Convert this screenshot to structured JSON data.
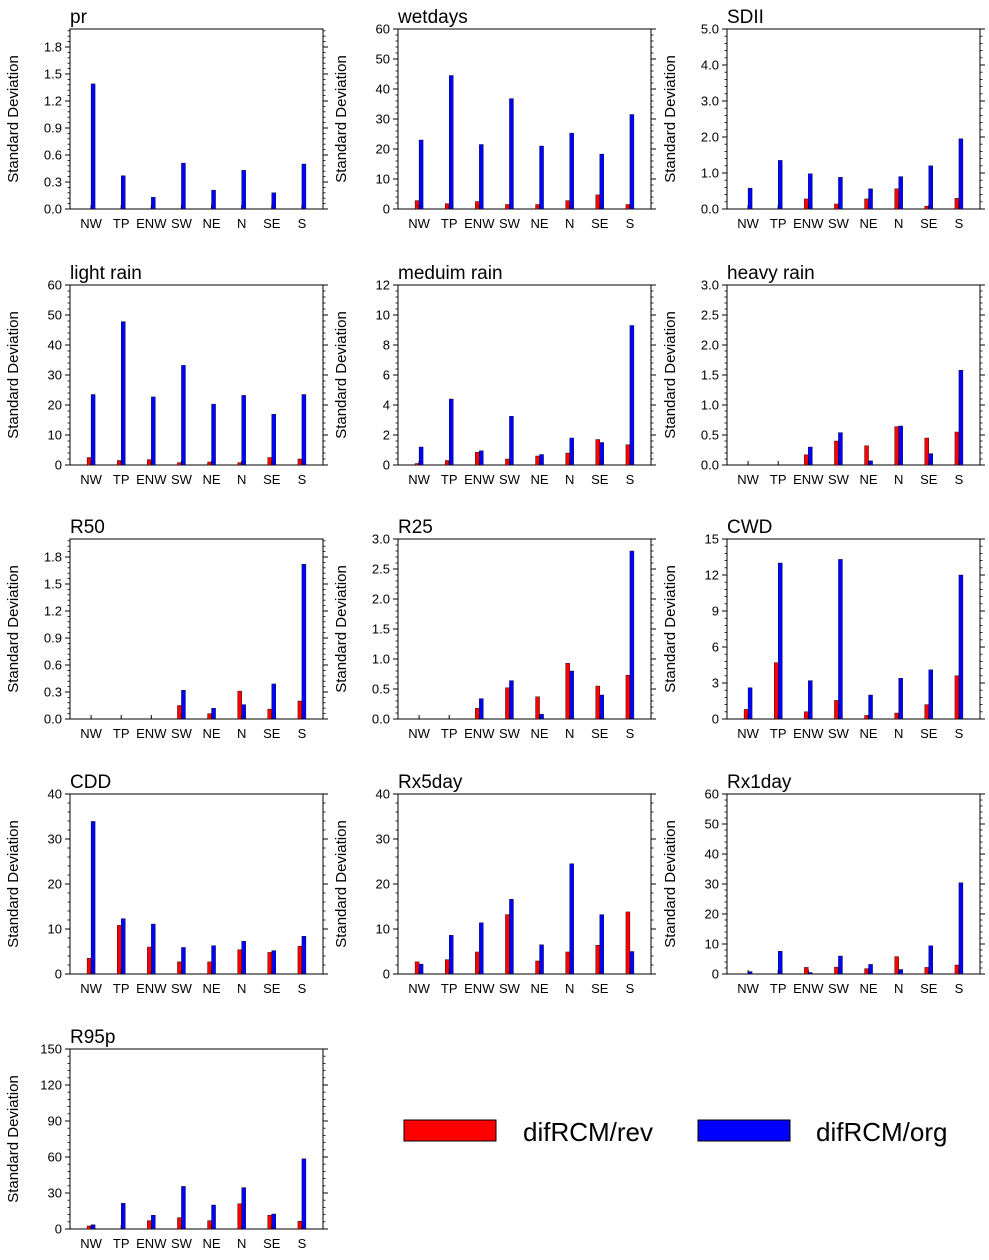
{
  "chart_data": [
    {
      "type": "bar",
      "title": "pr",
      "ylabel": "Standard Deviation",
      "ylim": [
        0,
        2.0
      ],
      "yticks": [
        "0.0",
        "0.3",
        "0.6",
        "0.9",
        "1.2",
        "1.5",
        "1.8"
      ],
      "ytick_values": [
        0,
        0.3,
        0.6,
        0.9,
        1.2,
        1.5,
        1.8
      ],
      "categories": [
        "NW",
        "TP",
        "ENW",
        "SW",
        "NE",
        "N",
        "SE",
        "S"
      ],
      "series": [
        {
          "name": "difRCM/rev",
          "values": [
            0,
            0,
            0,
            0,
            0,
            0,
            0,
            0
          ]
        },
        {
          "name": "difRCM/org",
          "values": [
            1.39,
            0.37,
            0.13,
            0.51,
            0.21,
            0.43,
            0.18,
            0.5
          ]
        }
      ]
    },
    {
      "type": "bar",
      "title": "wetdays",
      "ylabel": "Standard Deviation",
      "ylim": [
        0,
        60
      ],
      "yticks": [
        "0",
        "10",
        "20",
        "30",
        "40",
        "50",
        "60"
      ],
      "ytick_values": [
        0,
        10,
        20,
        30,
        40,
        50,
        60
      ],
      "categories": [
        "NW",
        "TP",
        "ENW",
        "SW",
        "NE",
        "N",
        "SE",
        "S"
      ],
      "series": [
        {
          "name": "difRCM/rev",
          "values": [
            2.8,
            1.8,
            2.5,
            1.5,
            1.5,
            2.8,
            4.7,
            1.5
          ]
        },
        {
          "name": "difRCM/org",
          "values": [
            23,
            44.5,
            21.5,
            36.8,
            21,
            25.3,
            18.3,
            31.5
          ]
        }
      ]
    },
    {
      "type": "bar",
      "title": "SDII",
      "ylabel": "Standard Deviation",
      "ylim": [
        0,
        5.0
      ],
      "yticks": [
        "0.0",
        "1.0",
        "2.0",
        "3.0",
        "4.0",
        "5.0"
      ],
      "ytick_values": [
        0,
        1,
        2,
        3,
        4,
        5
      ],
      "categories": [
        "NW",
        "TP",
        "ENW",
        "SW",
        "NE",
        "N",
        "SE",
        "S"
      ],
      "series": [
        {
          "name": "difRCM/rev",
          "values": [
            0,
            0,
            0.28,
            0.14,
            0.28,
            0.56,
            0.08,
            0.3
          ]
        },
        {
          "name": "difRCM/org",
          "values": [
            0.58,
            1.35,
            0.98,
            0.88,
            0.56,
            0.9,
            1.2,
            1.95
          ]
        }
      ]
    },
    {
      "type": "bar",
      "title": "light rain",
      "ylabel": "Standard Deviation",
      "ylim": [
        0,
        60
      ],
      "yticks": [
        "0",
        "10",
        "20",
        "30",
        "40",
        "50",
        "60"
      ],
      "ytick_values": [
        0,
        10,
        20,
        30,
        40,
        50,
        60
      ],
      "categories": [
        "NW",
        "TP",
        "ENW",
        "SW",
        "NE",
        "N",
        "SE",
        "S"
      ],
      "series": [
        {
          "name": "difRCM/rev",
          "values": [
            2.5,
            1.5,
            1.8,
            0.8,
            1.0,
            0.8,
            2.5,
            2.0
          ]
        },
        {
          "name": "difRCM/org",
          "values": [
            23.5,
            47.8,
            22.7,
            33.2,
            20.3,
            23.2,
            16.9,
            23.5
          ]
        }
      ]
    },
    {
      "type": "bar",
      "title": "meduim rain",
      "ylabel": "Standard Deviation",
      "ylim": [
        0,
        12
      ],
      "yticks": [
        "0",
        "2",
        "4",
        "6",
        "8",
        "10",
        "12"
      ],
      "ytick_values": [
        0,
        2,
        4,
        6,
        8,
        10,
        12
      ],
      "categories": [
        "NW",
        "TP",
        "ENW",
        "SW",
        "NE",
        "N",
        "SE",
        "S"
      ],
      "series": [
        {
          "name": "difRCM/rev",
          "values": [
            0.1,
            0.3,
            0.85,
            0.4,
            0.6,
            0.8,
            1.7,
            1.35
          ]
        },
        {
          "name": "difRCM/org",
          "values": [
            1.2,
            4.4,
            0.95,
            3.25,
            0.7,
            1.8,
            1.5,
            9.3
          ]
        }
      ]
    },
    {
      "type": "bar",
      "title": "heavy rain",
      "ylabel": "Standard Deviation",
      "ylim": [
        0,
        3.0
      ],
      "yticks": [
        "0.0",
        "0.5",
        "1.0",
        "1.5",
        "2.0",
        "2.5",
        "3.0"
      ],
      "ytick_values": [
        0,
        0.5,
        1,
        1.5,
        2,
        2.5,
        3
      ],
      "categories": [
        "NW",
        "TP",
        "ENW",
        "SW",
        "NE",
        "N",
        "SE",
        "S"
      ],
      "series": [
        {
          "name": "difRCM/rev",
          "values": [
            0,
            0,
            0.17,
            0.4,
            0.32,
            0.64,
            0.45,
            0.55
          ]
        },
        {
          "name": "difRCM/org",
          "values": [
            0,
            0,
            0.3,
            0.54,
            0.07,
            0.65,
            0.19,
            1.58
          ]
        }
      ]
    },
    {
      "type": "bar",
      "title": "R50",
      "ylabel": "Standard Deviation",
      "ylim": [
        0,
        2.0
      ],
      "yticks": [
        "0.0",
        "0.3",
        "0.6",
        "0.9",
        "1.2",
        "1.5",
        "1.8"
      ],
      "ytick_values": [
        0,
        0.3,
        0.6,
        0.9,
        1.2,
        1.5,
        1.8
      ],
      "categories": [
        "NW",
        "TP",
        "ENW",
        "SW",
        "NE",
        "N",
        "SE",
        "S"
      ],
      "series": [
        {
          "name": "difRCM/rev",
          "values": [
            0,
            0,
            0,
            0.15,
            0.06,
            0.31,
            0.11,
            0.2
          ]
        },
        {
          "name": "difRCM/org",
          "values": [
            0,
            0,
            0,
            0.32,
            0.12,
            0.16,
            0.39,
            1.72
          ]
        }
      ]
    },
    {
      "type": "bar",
      "title": "R25",
      "ylabel": "Standard Deviation",
      "ylim": [
        0,
        3.0
      ],
      "yticks": [
        "0.0",
        "0.5",
        "1.0",
        "1.5",
        "2.0",
        "2.5",
        "3.0"
      ],
      "ytick_values": [
        0,
        0.5,
        1,
        1.5,
        2,
        2.5,
        3
      ],
      "categories": [
        "NW",
        "TP",
        "ENW",
        "SW",
        "NE",
        "N",
        "SE",
        "S"
      ],
      "series": [
        {
          "name": "difRCM/rev",
          "values": [
            0,
            0,
            0.18,
            0.52,
            0.37,
            0.93,
            0.55,
            0.73
          ]
        },
        {
          "name": "difRCM/org",
          "values": [
            0,
            0,
            0.34,
            0.64,
            0.08,
            0.8,
            0.4,
            2.8
          ]
        }
      ]
    },
    {
      "type": "bar",
      "title": "CWD",
      "ylabel": "Standard Deviation",
      "ylim": [
        0,
        15
      ],
      "yticks": [
        "0",
        "3",
        "6",
        "9",
        "12",
        "15"
      ],
      "ytick_values": [
        0,
        3,
        6,
        9,
        12,
        15
      ],
      "categories": [
        "NW",
        "TP",
        "ENW",
        "SW",
        "NE",
        "N",
        "SE",
        "S"
      ],
      "series": [
        {
          "name": "difRCM/rev",
          "values": [
            0.8,
            4.7,
            0.6,
            1.55,
            0.3,
            0.5,
            1.2,
            3.6
          ]
        },
        {
          "name": "difRCM/org",
          "values": [
            2.6,
            13.0,
            3.2,
            13.3,
            2.0,
            3.4,
            4.1,
            12.0
          ]
        }
      ]
    },
    {
      "type": "bar",
      "title": "CDD",
      "ylabel": "Standard Deviation",
      "ylim": [
        0,
        40
      ],
      "yticks": [
        "0",
        "10",
        "20",
        "30",
        "40"
      ],
      "ytick_values": [
        0,
        10,
        20,
        30,
        40
      ],
      "categories": [
        "NW",
        "TP",
        "ENW",
        "SW",
        "NE",
        "N",
        "SE",
        "S"
      ],
      "series": [
        {
          "name": "difRCM/rev",
          "values": [
            3.5,
            10.8,
            6.0,
            2.7,
            2.7,
            5.4,
            4.8,
            6.2
          ]
        },
        {
          "name": "difRCM/org",
          "values": [
            33.9,
            12.3,
            11.1,
            5.9,
            6.3,
            7.3,
            5.2,
            8.4
          ]
        }
      ]
    },
    {
      "type": "bar",
      "title": "Rx5day",
      "ylabel": "Standard Deviation",
      "ylim": [
        0,
        40
      ],
      "yticks": [
        "0",
        "10",
        "20",
        "30",
        "40"
      ],
      "ytick_values": [
        0,
        10,
        20,
        30,
        40
      ],
      "categories": [
        "NW",
        "TP",
        "ENW",
        "SW",
        "NE",
        "N",
        "SE",
        "S"
      ],
      "series": [
        {
          "name": "difRCM/rev",
          "values": [
            2.7,
            3.2,
            4.9,
            13.2,
            2.9,
            4.9,
            6.4,
            13.8
          ]
        },
        {
          "name": "difRCM/org",
          "values": [
            2.2,
            8.6,
            11.4,
            16.6,
            6.5,
            24.5,
            13.2,
            5.0
          ]
        }
      ]
    },
    {
      "type": "bar",
      "title": "Rx1day",
      "ylabel": "Standard Deviation",
      "ylim": [
        0,
        60
      ],
      "yticks": [
        "0",
        "10",
        "20",
        "30",
        "40",
        "50",
        "60"
      ],
      "ytick_values": [
        0,
        10,
        20,
        30,
        40,
        50,
        60
      ],
      "categories": [
        "NW",
        "TP",
        "ENW",
        "SW",
        "NE",
        "N",
        "SE",
        "S"
      ],
      "series": [
        {
          "name": "difRCM/rev",
          "values": [
            0,
            0,
            2.2,
            2.3,
            1.8,
            5.8,
            2.2,
            3.0
          ]
        },
        {
          "name": "difRCM/org",
          "values": [
            0.8,
            7.6,
            0.5,
            6.0,
            3.2,
            1.5,
            9.4,
            30.4
          ]
        }
      ]
    },
    {
      "type": "bar",
      "title": "R95p",
      "ylabel": "Standard Deviation",
      "ylim": [
        0,
        150
      ],
      "yticks": [
        "0",
        "30",
        "60",
        "90",
        "120",
        "150"
      ],
      "ytick_values": [
        0,
        30,
        60,
        90,
        120,
        150
      ],
      "categories": [
        "NW",
        "TP",
        "ENW",
        "SW",
        "NE",
        "N",
        "SE",
        "S"
      ],
      "series": [
        {
          "name": "difRCM/rev",
          "values": [
            2.5,
            0,
            7.0,
            9.5,
            7.0,
            21.0,
            11.5,
            6.5
          ]
        },
        {
          "name": "difRCM/org",
          "values": [
            3.5,
            21.5,
            11.5,
            35.5,
            20.0,
            34.5,
            12.5,
            58.5
          ]
        }
      ]
    }
  ],
  "legend": {
    "items": [
      {
        "label": "difRCM/rev",
        "color": "#ff0000"
      },
      {
        "label": "difRCM/org",
        "color": "#0000ff"
      }
    ]
  },
  "colors": {
    "rev": "#ff0000",
    "org": "#0000ff",
    "axis": "#000000"
  }
}
